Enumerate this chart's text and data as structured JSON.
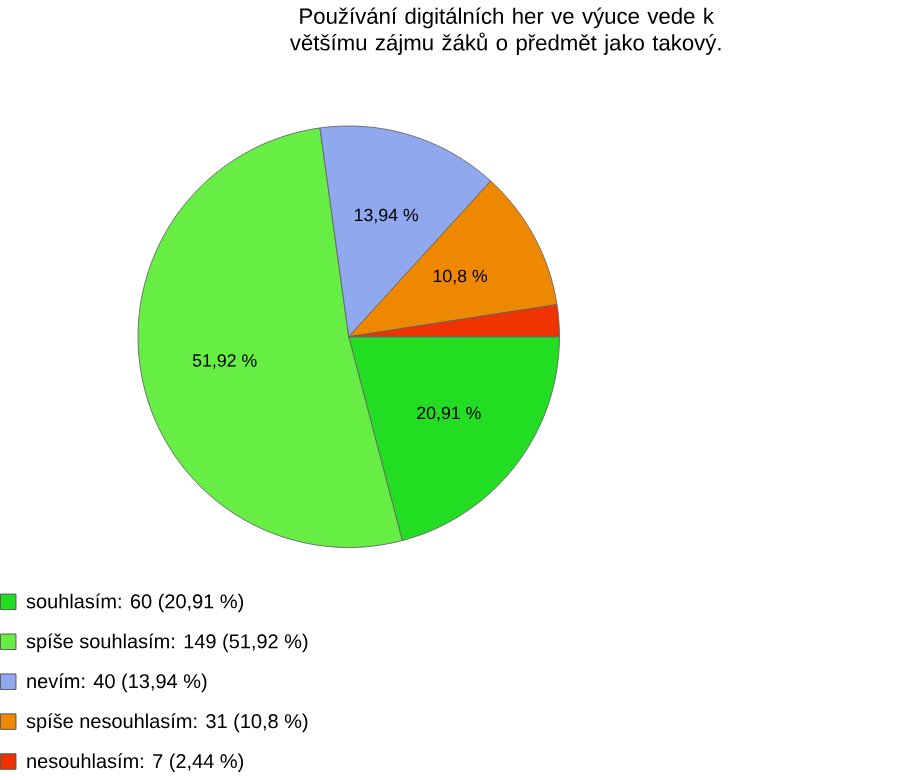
{
  "chart_data": {
    "type": "pie",
    "title": "Používání digitálních her ve výuce vede k většímu zájmu žáků o předmět jako takový.",
    "categories": [
      "souhlasím: 60 (20,91 %)",
      "spíše souhlasím: 149 (51,92 %)",
      "nevím: 40 (13,94 %)",
      "spíše nesouhlasím: 31 (10,8 %)",
      "nesouhlasím: 7 (2,44 %)"
    ],
    "values": [
      20.91,
      51.92,
      13.94,
      10.8,
      2.44
    ],
    "colors": [
      "#22dd22",
      "#66ee44",
      "#8fa8ee",
      "#ee8800",
      "#ee3300"
    ],
    "value_labels": [
      "20,91 %",
      "51,92 %",
      "13,94 %",
      "10,8 %",
      null
    ],
    "legend": "bottom left"
  }
}
